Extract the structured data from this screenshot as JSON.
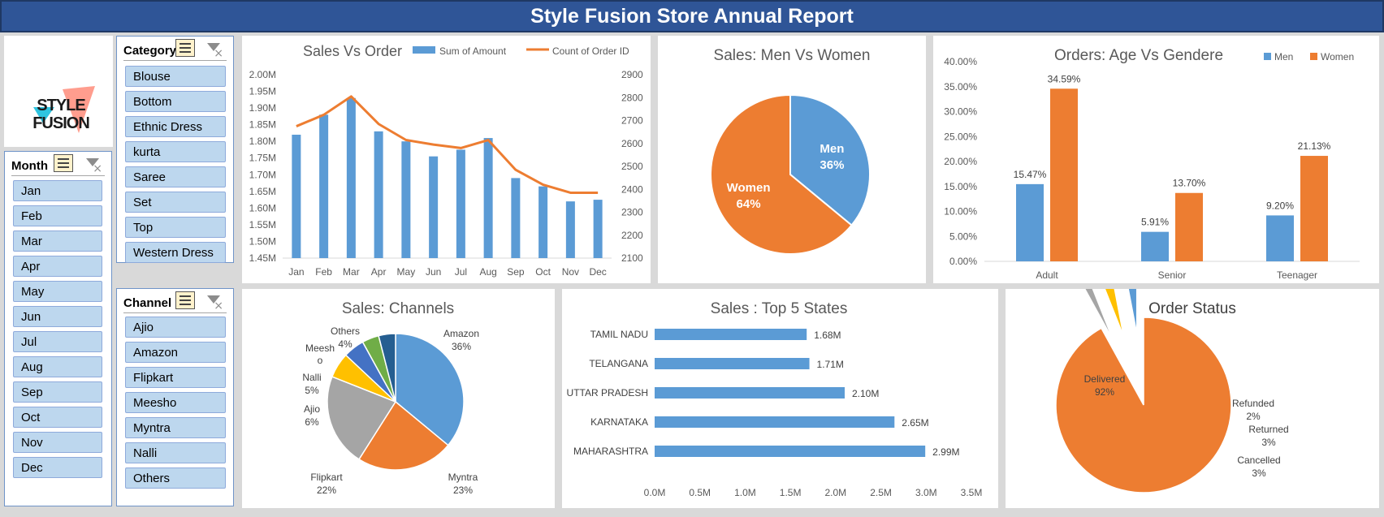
{
  "report_title": "Style Fusion Store Annual Report",
  "logo": {
    "line1": "STYLE",
    "line2": "FUSION"
  },
  "slicers": {
    "category": {
      "title": "Category",
      "items": [
        "Blouse",
        "Bottom",
        "Ethnic Dress",
        "kurta",
        "Saree",
        "Set",
        "Top",
        "Western Dress"
      ]
    },
    "month": {
      "title": "Month",
      "items": [
        "Jan",
        "Feb",
        "Mar",
        "Apr",
        "May",
        "Jun",
        "Jul",
        "Aug",
        "Sep",
        "Oct",
        "Nov",
        "Dec"
      ]
    },
    "channel": {
      "title": "Channel",
      "items": [
        "Ajio",
        "Amazon",
        "Flipkart",
        "Meesho",
        "Myntra",
        "Nalli",
        "Others"
      ]
    }
  },
  "colors": {
    "blue": "#5b9bd5",
    "orange": "#ed7d31",
    "gray": "#a5a5a5",
    "yellow": "#ffc000",
    "darkblue": "#4472c4",
    "green": "#70ad47",
    "navy": "#255e91",
    "header": "#2f5597"
  },
  "chart_data": [
    {
      "type": "bar",
      "title": "Sales Vs Order",
      "categories": [
        "Jan",
        "Feb",
        "Mar",
        "Apr",
        "May",
        "Jun",
        "Jul",
        "Aug",
        "Sep",
        "Oct",
        "Nov",
        "Dec"
      ],
      "series": [
        {
          "name": "Sum of Amount",
          "type": "bar",
          "axis": "left",
          "values": [
            1.82,
            1.88,
            1.93,
            1.83,
            1.8,
            1.755,
            1.775,
            1.81,
            1.69,
            1.665,
            1.62,
            1.625
          ]
        },
        {
          "name": "Count of Order ID",
          "type": "line",
          "axis": "right",
          "values": [
            2675,
            2725,
            2805,
            2685,
            2615,
            2595,
            2580,
            2615,
            2485,
            2420,
            2385,
            2385
          ]
        }
      ],
      "y_left": {
        "min": 1.45,
        "max": 2.0,
        "ticks": [
          "2.00M",
          "1.95M",
          "1.90M",
          "1.85M",
          "1.80M",
          "1.75M",
          "1.70M",
          "1.65M",
          "1.60M",
          "1.55M",
          "1.50M",
          "1.45M"
        ]
      },
      "y_right": {
        "min": 2100,
        "max": 2900,
        "ticks": [
          "2900",
          "2800",
          "2700",
          "2600",
          "2500",
          "2400",
          "2300",
          "2200",
          "2100"
        ]
      },
      "legend": "top"
    },
    {
      "type": "pie",
      "title": "Sales: Men Vs Women",
      "slices": [
        {
          "label": "Men",
          "value": 36,
          "text": "36%"
        },
        {
          "label": "Women",
          "value": 64,
          "text": "64%"
        }
      ]
    },
    {
      "type": "bar",
      "title": "Orders: Age Vs Gendere",
      "categories": [
        "Adult",
        "Senior",
        "Teenager"
      ],
      "series": [
        {
          "name": "Men",
          "values": [
            15.47,
            5.91,
            9.2
          ],
          "labels": [
            "15.47%",
            "5.91%",
            "9.20%"
          ]
        },
        {
          "name": "Women",
          "values": [
            34.59,
            13.7,
            21.13
          ],
          "labels": [
            "34.59%",
            "13.70%",
            "21.13%"
          ]
        }
      ],
      "ylim": [
        0,
        40
      ],
      "y_ticks": [
        "40.00%",
        "35.00%",
        "30.00%",
        "25.00%",
        "20.00%",
        "15.00%",
        "10.00%",
        "5.00%",
        "0.00%"
      ],
      "legend": "top-right"
    },
    {
      "type": "pie",
      "title": "Sales: Channels",
      "slices": [
        {
          "label": "Amazon",
          "value": 36,
          "text": "36%"
        },
        {
          "label": "Myntra",
          "value": 23,
          "text": "23%"
        },
        {
          "label": "Flipkart",
          "value": 22,
          "text": "22%"
        },
        {
          "label": "Ajio",
          "value": 6,
          "text": "6%"
        },
        {
          "label": "Nalli",
          "value": 5,
          "text": "5%"
        },
        {
          "label": "Meesho",
          "value": 4,
          "text": ""
        },
        {
          "label": "Others",
          "value": 4,
          "text": "4%"
        }
      ]
    },
    {
      "type": "bar",
      "orientation": "horizontal",
      "title": "Sales : Top 5 States",
      "categories": [
        "TAMIL NADU",
        "TELANGANA",
        "UTTAR PRADESH",
        "KARNATAKA",
        "MAHARASHTRA"
      ],
      "values": [
        1.68,
        1.71,
        2.1,
        2.65,
        2.99
      ],
      "labels": [
        "1.68M",
        "1.71M",
        "2.10M",
        "2.65M",
        "2.99M"
      ],
      "xlim": [
        0,
        3.5
      ],
      "x_ticks": [
        "0.0M",
        "0.5M",
        "1.0M",
        "1.5M",
        "2.0M",
        "2.5M",
        "3.0M",
        "3.5M"
      ]
    },
    {
      "type": "pie",
      "title": "Order Status",
      "slices": [
        {
          "label": "Delivered",
          "value": 92,
          "text": "92%"
        },
        {
          "label": "Refunded",
          "value": 2,
          "text": "2%"
        },
        {
          "label": "Returned",
          "value": 3,
          "text": "3%"
        },
        {
          "label": "Cancelled",
          "value": 3,
          "text": "3%"
        }
      ]
    }
  ]
}
